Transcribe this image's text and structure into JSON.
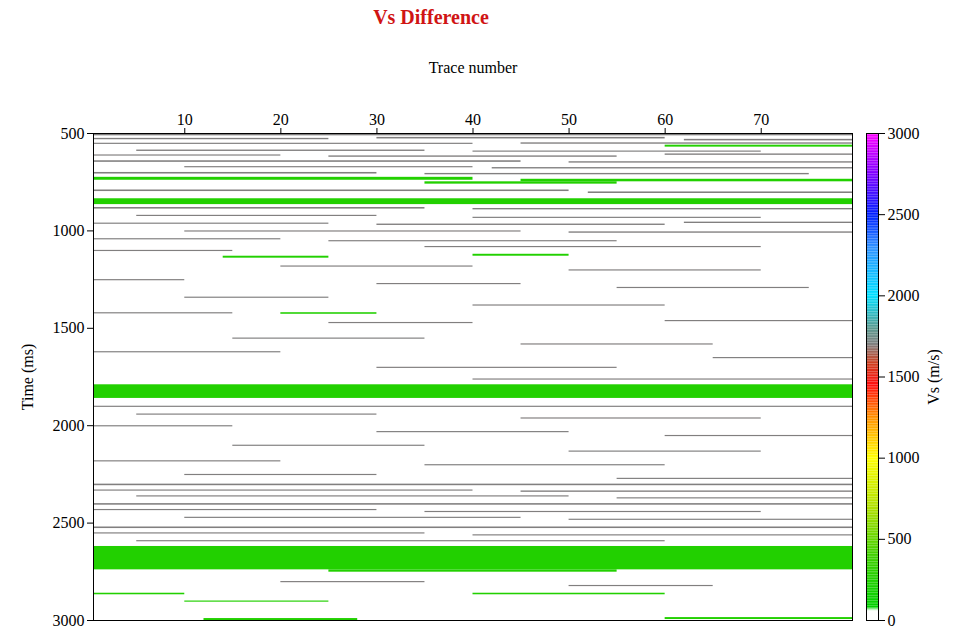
{
  "chart_data": {
    "type": "heatmap",
    "title": "Vs Difference",
    "x_label": "Trace number",
    "y_label": "Time (ms)",
    "xlim": [
      0.5,
      79.5
    ],
    "xticks": [
      10,
      20,
      30,
      40,
      50,
      60,
      70
    ],
    "ylim": [
      500,
      3000
    ],
    "yticks": [
      500,
      1000,
      1500,
      2000,
      2500,
      3000
    ],
    "colorbar": {
      "label": "Vs (m/s)",
      "range": [
        0,
        3000
      ],
      "ticks": [
        0,
        500,
        1000,
        1500,
        2000,
        2500,
        3000
      ]
    },
    "cells": [
      {
        "trace": [
          0.5,
          79.5
        ],
        "time": [
          835,
          865
        ],
        "vs": 250
      },
      {
        "trace": [
          0.5,
          40
        ],
        "time": [
          725,
          740
        ],
        "vs": 250
      },
      {
        "trace": [
          45,
          79.5
        ],
        "time": [
          735,
          748
        ],
        "vs": 250
      },
      {
        "trace": [
          35,
          55
        ],
        "time": [
          748,
          760
        ],
        "vs": 250
      },
      {
        "trace": [
          60,
          79.5
        ],
        "time": [
          560,
          570
        ],
        "vs": 250
      },
      {
        "trace": [
          14,
          25
        ],
        "time": [
          1130,
          1140
        ],
        "vs": 250
      },
      {
        "trace": [
          40,
          50
        ],
        "time": [
          1120,
          1130
        ],
        "vs": 250
      },
      {
        "trace": [
          20,
          30
        ],
        "time": [
          1420,
          1428
        ],
        "vs": 250
      },
      {
        "trace": [
          0.5,
          79.5
        ],
        "time": [
          1790,
          1860
        ],
        "vs": 250
      },
      {
        "trace": [
          0.5,
          79.5
        ],
        "time": [
          2620,
          2740
        ],
        "vs": 250
      },
      {
        "trace": [
          25,
          55
        ],
        "time": [
          2740,
          2752
        ],
        "vs": 250
      },
      {
        "trace": [
          0.5,
          10
        ],
        "time": [
          2860,
          2868
        ],
        "vs": 250
      },
      {
        "trace": [
          40,
          60
        ],
        "time": [
          2860,
          2868
        ],
        "vs": 250
      },
      {
        "trace": [
          10,
          25
        ],
        "time": [
          2900,
          2906
        ],
        "vs": 250
      },
      {
        "trace": [
          60,
          79.5
        ],
        "time": [
          2985,
          2995
        ],
        "vs": 250
      },
      {
        "trace": [
          12,
          28
        ],
        "time": [
          2990,
          3000
        ],
        "vs": 250
      },
      {
        "trace": [
          0.5,
          79.5
        ],
        "time": [
          505,
          512
        ],
        "vs": 1700
      },
      {
        "trace": [
          0.5,
          25
        ],
        "time": [
          525,
          532
        ],
        "vs": 1700
      },
      {
        "trace": [
          30,
          60
        ],
        "time": [
          520,
          528
        ],
        "vs": 1700
      },
      {
        "trace": [
          62,
          79.5
        ],
        "time": [
          530,
          538
        ],
        "vs": 1700
      },
      {
        "trace": [
          0.5,
          40
        ],
        "time": [
          550,
          556
        ],
        "vs": 1700
      },
      {
        "trace": [
          45,
          79.5
        ],
        "time": [
          548,
          555
        ],
        "vs": 1700
      },
      {
        "trace": [
          5,
          35
        ],
        "time": [
          585,
          592
        ],
        "vs": 1700
      },
      {
        "trace": [
          40,
          70
        ],
        "time": [
          590,
          596
        ],
        "vs": 1700
      },
      {
        "trace": [
          0.5,
          20
        ],
        "time": [
          610,
          616
        ],
        "vs": 1700
      },
      {
        "trace": [
          25,
          55
        ],
        "time": [
          615,
          622
        ],
        "vs": 1700
      },
      {
        "trace": [
          60,
          79.5
        ],
        "time": [
          605,
          612
        ],
        "vs": 1700
      },
      {
        "trace": [
          0.5,
          45
        ],
        "time": [
          640,
          648
        ],
        "vs": 1700
      },
      {
        "trace": [
          50,
          79.5
        ],
        "time": [
          645,
          652
        ],
        "vs": 1700
      },
      {
        "trace": [
          10,
          40
        ],
        "time": [
          670,
          676
        ],
        "vs": 1700
      },
      {
        "trace": [
          42,
          79.5
        ],
        "time": [
          675,
          682
        ],
        "vs": 1700
      },
      {
        "trace": [
          0.5,
          30
        ],
        "time": [
          700,
          708
        ],
        "vs": 1700
      },
      {
        "trace": [
          35,
          75
        ],
        "time": [
          705,
          712
        ],
        "vs": 1700
      },
      {
        "trace": [
          0.5,
          50
        ],
        "time": [
          790,
          798
        ],
        "vs": 1700
      },
      {
        "trace": [
          52,
          79.5
        ],
        "time": [
          800,
          808
        ],
        "vs": 1700
      },
      {
        "trace": [
          0.5,
          35
        ],
        "time": [
          880,
          888
        ],
        "vs": 1700
      },
      {
        "trace": [
          40,
          79.5
        ],
        "time": [
          885,
          892
        ],
        "vs": 1700
      },
      {
        "trace": [
          5,
          30
        ],
        "time": [
          920,
          926
        ],
        "vs": 1700
      },
      {
        "trace": [
          40,
          70
        ],
        "time": [
          930,
          936
        ],
        "vs": 1700
      },
      {
        "trace": [
          0.5,
          25
        ],
        "time": [
          960,
          966
        ],
        "vs": 1700
      },
      {
        "trace": [
          30,
          60
        ],
        "time": [
          965,
          972
        ],
        "vs": 1700
      },
      {
        "trace": [
          62,
          79.5
        ],
        "time": [
          955,
          962
        ],
        "vs": 1700
      },
      {
        "trace": [
          10,
          45
        ],
        "time": [
          1000,
          1006
        ],
        "vs": 1700
      },
      {
        "trace": [
          50,
          79.5
        ],
        "time": [
          1005,
          1012
        ],
        "vs": 1700
      },
      {
        "trace": [
          0.5,
          20
        ],
        "time": [
          1040,
          1046
        ],
        "vs": 1700
      },
      {
        "trace": [
          25,
          55
        ],
        "time": [
          1050,
          1056
        ],
        "vs": 1700
      },
      {
        "trace": [
          35,
          70
        ],
        "time": [
          1080,
          1086
        ],
        "vs": 1700
      },
      {
        "trace": [
          0.5,
          15
        ],
        "time": [
          1100,
          1106
        ],
        "vs": 1700
      },
      {
        "trace": [
          20,
          40
        ],
        "time": [
          1180,
          1186
        ],
        "vs": 1700
      },
      {
        "trace": [
          50,
          70
        ],
        "time": [
          1200,
          1206
        ],
        "vs": 1700
      },
      {
        "trace": [
          0.5,
          10
        ],
        "time": [
          1250,
          1256
        ],
        "vs": 1700
      },
      {
        "trace": [
          30,
          45
        ],
        "time": [
          1270,
          1276
        ],
        "vs": 1700
      },
      {
        "trace": [
          55,
          75
        ],
        "time": [
          1290,
          1296
        ],
        "vs": 1700
      },
      {
        "trace": [
          10,
          25
        ],
        "time": [
          1340,
          1346
        ],
        "vs": 1700
      },
      {
        "trace": [
          40,
          60
        ],
        "time": [
          1380,
          1386
        ],
        "vs": 1700
      },
      {
        "trace": [
          0.5,
          15
        ],
        "time": [
          1420,
          1426
        ],
        "vs": 1700
      },
      {
        "trace": [
          25,
          40
        ],
        "time": [
          1470,
          1476
        ],
        "vs": 1700
      },
      {
        "trace": [
          60,
          79.5
        ],
        "time": [
          1460,
          1466
        ],
        "vs": 1700
      },
      {
        "trace": [
          15,
          35
        ],
        "time": [
          1550,
          1556
        ],
        "vs": 1700
      },
      {
        "trace": [
          45,
          65
        ],
        "time": [
          1580,
          1586
        ],
        "vs": 1700
      },
      {
        "trace": [
          0.5,
          20
        ],
        "time": [
          1620,
          1626
        ],
        "vs": 1700
      },
      {
        "trace": [
          65,
          79.5
        ],
        "time": [
          1650,
          1656
        ],
        "vs": 1700
      },
      {
        "trace": [
          30,
          55
        ],
        "time": [
          1700,
          1706
        ],
        "vs": 1700
      },
      {
        "trace": [
          40,
          79.5
        ],
        "time": [
          1760,
          1766
        ],
        "vs": 1700
      },
      {
        "trace": [
          0.5,
          79.5
        ],
        "time": [
          1900,
          1906
        ],
        "vs": 1700
      },
      {
        "trace": [
          5,
          30
        ],
        "time": [
          1940,
          1946
        ],
        "vs": 1700
      },
      {
        "trace": [
          45,
          70
        ],
        "time": [
          1960,
          1966
        ],
        "vs": 1700
      },
      {
        "trace": [
          0.5,
          15
        ],
        "time": [
          2000,
          2006
        ],
        "vs": 1700
      },
      {
        "trace": [
          30,
          50
        ],
        "time": [
          2030,
          2036
        ],
        "vs": 1700
      },
      {
        "trace": [
          60,
          79.5
        ],
        "time": [
          2050,
          2056
        ],
        "vs": 1700
      },
      {
        "trace": [
          15,
          35
        ],
        "time": [
          2100,
          2106
        ],
        "vs": 1700
      },
      {
        "trace": [
          50,
          70
        ],
        "time": [
          2130,
          2136
        ],
        "vs": 1700
      },
      {
        "trace": [
          0.5,
          20
        ],
        "time": [
          2180,
          2186
        ],
        "vs": 1700
      },
      {
        "trace": [
          35,
          60
        ],
        "time": [
          2200,
          2206
        ],
        "vs": 1700
      },
      {
        "trace": [
          10,
          30
        ],
        "time": [
          2250,
          2256
        ],
        "vs": 1700
      },
      {
        "trace": [
          55,
          79.5
        ],
        "time": [
          2270,
          2276
        ],
        "vs": 1700
      },
      {
        "trace": [
          0.5,
          79.5
        ],
        "time": [
          2300,
          2308
        ],
        "vs": 1700
      },
      {
        "trace": [
          0.5,
          40
        ],
        "time": [
          2330,
          2336
        ],
        "vs": 1700
      },
      {
        "trace": [
          45,
          79.5
        ],
        "time": [
          2335,
          2342
        ],
        "vs": 1700
      },
      {
        "trace": [
          5,
          50
        ],
        "time": [
          2360,
          2366
        ],
        "vs": 1700
      },
      {
        "trace": [
          55,
          79.5
        ],
        "time": [
          2370,
          2376
        ],
        "vs": 1700
      },
      {
        "trace": [
          0.5,
          79.5
        ],
        "time": [
          2400,
          2408
        ],
        "vs": 1700
      },
      {
        "trace": [
          0.5,
          30
        ],
        "time": [
          2430,
          2436
        ],
        "vs": 1700
      },
      {
        "trace": [
          35,
          70
        ],
        "time": [
          2440,
          2446
        ],
        "vs": 1700
      },
      {
        "trace": [
          10,
          45
        ],
        "time": [
          2470,
          2476
        ],
        "vs": 1700
      },
      {
        "trace": [
          50,
          79.5
        ],
        "time": [
          2480,
          2486
        ],
        "vs": 1700
      },
      {
        "trace": [
          0.5,
          79.5
        ],
        "time": [
          2520,
          2528
        ],
        "vs": 1700
      },
      {
        "trace": [
          0.5,
          35
        ],
        "time": [
          2550,
          2556
        ],
        "vs": 1700
      },
      {
        "trace": [
          40,
          79.5
        ],
        "time": [
          2560,
          2566
        ],
        "vs": 1700
      },
      {
        "trace": [
          5,
          60
        ],
        "time": [
          2590,
          2596
        ],
        "vs": 1700
      },
      {
        "trace": [
          20,
          35
        ],
        "time": [
          2800,
          2806
        ],
        "vs": 1700
      },
      {
        "trace": [
          50,
          65
        ],
        "time": [
          2820,
          2826
        ],
        "vs": 1700
      }
    ]
  }
}
